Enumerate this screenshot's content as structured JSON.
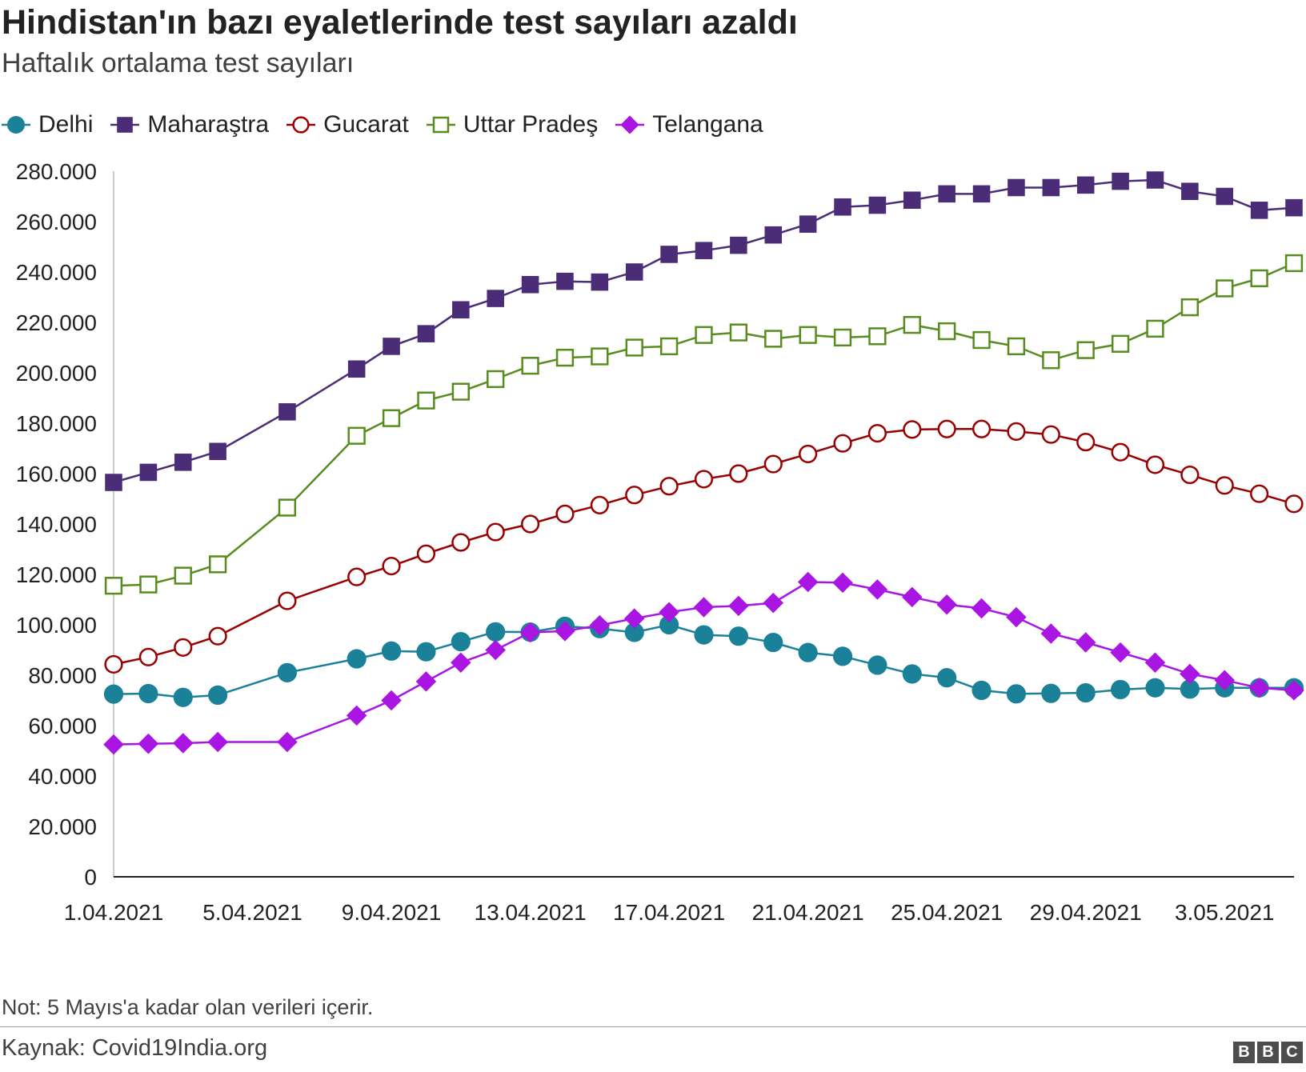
{
  "title": "Hindistan'ın bazı eyaletlerinde test sayıları azaldı",
  "subtitle": "Haftalık ortalama test sayıları",
  "note": "Not: 5 Mayıs'a kadar olan verileri içerir.",
  "source": "Kaynak: Covid19India.org",
  "logo": [
    "B",
    "B",
    "C"
  ],
  "chart_data": {
    "type": "line",
    "title": "Hindistan'ın bazı eyaletlerinde test sayıları azaldı",
    "subtitle": "Haftalık ortalama test sayıları",
    "x": [
      "1.04.2021",
      "2.04.2021",
      "3.04.2021",
      "4.04.2021",
      "6.04.2021",
      "8.04.2021",
      "9.04.2021",
      "10.04.2021",
      "11.04.2021",
      "12.04.2021",
      "13.04.2021",
      "14.04.2021",
      "15.04.2021",
      "16.04.2021",
      "17.04.2021",
      "18.04.2021",
      "19.04.2021",
      "20.04.2021",
      "21.04.2021",
      "22.04.2021",
      "23.04.2021",
      "24.04.2021",
      "25.04.2021",
      "26.04.2021",
      "27.04.2021",
      "28.04.2021",
      "29.04.2021",
      "30.04.2021",
      "1.05.2021",
      "2.05.2021",
      "3.05.2021",
      "4.05.2021",
      "5.05.2021"
    ],
    "x_tick_labels": [
      "1.04.2021",
      "5.04.2021",
      "9.04.2021",
      "13.04.2021",
      "17.04.2021",
      "21.04.2021",
      "25.04.2021",
      "29.04.2021",
      "3.05.2021"
    ],
    "y_tick_labels": [
      "0",
      "20.000",
      "40.000",
      "60.000",
      "80.000",
      "100.000",
      "120.000",
      "140.000",
      "160.000",
      "180.000",
      "200.000",
      "220.000",
      "240.000",
      "260.000",
      "280.000"
    ],
    "ylim": [
      0,
      280000
    ],
    "xlabel": "",
    "ylabel": "",
    "grid": false,
    "legend_position": "top-left",
    "series": [
      {
        "name": "Delhi",
        "color": "#1a8199",
        "marker": "circle",
        "values": [
          72500,
          72700,
          71200,
          72100,
          81000,
          86500,
          89600,
          89300,
          93300,
          97200,
          97100,
          99400,
          98500,
          97000,
          100000,
          96000,
          95500,
          93000,
          89000,
          87500,
          84000,
          80500,
          79000,
          74000,
          72600,
          72800,
          73000,
          74300,
          75000,
          74500,
          75000,
          75000,
          75000
        ]
      },
      {
        "name": "Maharaştra",
        "color": "#4b2d77",
        "marker": "square",
        "values": [
          156500,
          160500,
          164500,
          168800,
          184500,
          201500,
          210500,
          215500,
          225000,
          229500,
          235000,
          236300,
          236000,
          240000,
          247000,
          248500,
          250600,
          254700,
          259000,
          265800,
          266500,
          268500,
          271000,
          271000,
          273500,
          273500,
          274500,
          276000,
          276500,
          272000,
          270000,
          264500,
          265500
        ]
      },
      {
        "name": "Gucarat",
        "color": "#990000",
        "marker": "hollow-circle",
        "values": [
          84300,
          87200,
          91000,
          95500,
          109500,
          119000,
          123300,
          128200,
          132700,
          136800,
          140000,
          144000,
          147500,
          151500,
          155000,
          157800,
          160000,
          163800,
          167800,
          172000,
          176000,
          177500,
          177700,
          177700,
          176700,
          175500,
          172500,
          168500,
          163500,
          159500,
          155300,
          152000,
          148000
        ]
      },
      {
        "name": "Uttar Pradeş",
        "color": "#588c1f",
        "marker": "hollow-square",
        "values": [
          115500,
          116000,
          119500,
          124000,
          146500,
          175000,
          182000,
          189000,
          192500,
          197500,
          202800,
          206000,
          206500,
          210000,
          210500,
          215000,
          216000,
          213500,
          215000,
          214000,
          214500,
          219000,
          216500,
          213000,
          210500,
          205000,
          209000,
          211500,
          217500,
          226000,
          233500,
          237500,
          243500
        ]
      },
      {
        "name": "Telangana",
        "color": "#a915e3",
        "marker": "diamond",
        "values": [
          52500,
          52800,
          53000,
          53500,
          53500,
          64000,
          70000,
          77500,
          85000,
          90000,
          97000,
          97500,
          99800,
          102500,
          105000,
          107000,
          107500,
          108700,
          117000,
          116700,
          114000,
          111000,
          108000,
          106500,
          103000,
          96500,
          93000,
          89000,
          85000,
          80500,
          78000,
          75000,
          74000
        ]
      }
    ]
  }
}
